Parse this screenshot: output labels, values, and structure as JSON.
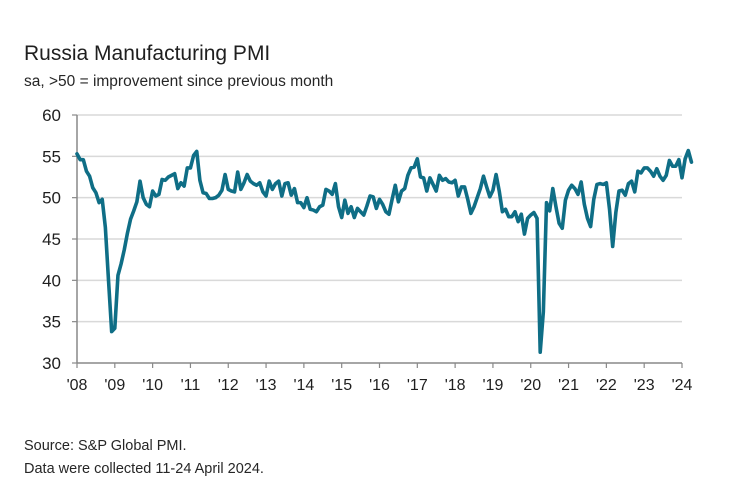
{
  "header": {
    "title": "Russia Manufacturing PMI",
    "subtitle": "sa, >50 = improvement since previous month"
  },
  "footer": {
    "source": "Source: S&P Global PMI.",
    "note": "Data were collected 11-24 April 2024."
  },
  "colors": {
    "line": "#0f6e86",
    "grid": "#d9d9d9",
    "axis": "#888888"
  },
  "chart_data": {
    "type": "line",
    "title": "Russia Manufacturing PMI",
    "subtitle": "sa, >50 = improvement since previous month",
    "xlabel": "",
    "ylabel": "",
    "ylim": [
      30,
      60
    ],
    "yticks": [
      30,
      35,
      40,
      45,
      50,
      55,
      60
    ],
    "ytick_labels": [
      "30",
      "35",
      "40",
      "45",
      "50",
      "55",
      "60"
    ],
    "xtick_labels": [
      "'08",
      "'09",
      "'10",
      "'11",
      "'12",
      "'13",
      "'14",
      "'15",
      "'16",
      "'17",
      "'18",
      "'19",
      "'20",
      "'21",
      "'22",
      "'23",
      "'24"
    ],
    "x_start": "2008-01",
    "x_end": "2024-04",
    "frequency": "monthly",
    "grid": true,
    "legend": "none",
    "series": [
      {
        "name": "Russia Manufacturing PMI",
        "values": [
          55.3,
          54.6,
          54.6,
          53.2,
          52.6,
          51.2,
          50.6,
          49.4,
          49.8,
          46.4,
          40.0,
          33.8,
          34.2,
          40.6,
          42.0,
          43.7,
          45.7,
          47.4,
          48.4,
          49.5,
          52.0,
          50.0,
          49.2,
          48.9,
          50.8,
          50.2,
          50.4,
          52.2,
          52.1,
          52.5,
          52.7,
          52.9,
          51.1,
          51.8,
          51.4,
          53.6,
          53.6,
          55.1,
          55.6,
          52.1,
          50.6,
          50.5,
          49.9,
          49.9,
          50.0,
          50.3,
          50.9,
          52.8,
          51.0,
          50.8,
          50.7,
          53.1,
          51.0,
          51.8,
          52.8,
          52.0,
          51.7,
          51.5,
          51.8,
          50.7,
          50.2,
          52.0,
          51.0,
          51.7,
          52.0,
          50.2,
          51.7,
          51.8,
          50.3,
          51.1,
          49.4,
          49.4,
          48.8,
          50.0,
          48.6,
          48.5,
          48.3,
          48.9,
          49.1,
          51.0,
          50.8,
          50.4,
          51.7,
          48.9,
          47.6,
          49.7,
          48.1,
          48.9,
          47.6,
          48.7,
          48.3,
          47.9,
          49.0,
          50.2,
          50.1,
          48.7,
          49.8,
          49.2,
          48.3,
          48.0,
          49.8,
          51.5,
          49.5,
          50.8,
          51.1,
          52.7,
          53.6,
          53.7,
          54.7,
          52.5,
          52.4,
          50.8,
          52.4,
          51.6,
          50.8,
          52.7,
          52.1,
          52.3,
          51.9,
          51.8,
          52.1,
          50.2,
          51.3,
          51.3,
          49.8,
          48.1,
          48.9,
          50.0,
          51.1,
          52.6,
          51.3,
          50.1,
          50.9,
          52.8,
          50.8,
          48.3,
          48.6,
          47.7,
          47.7,
          48.3,
          47.1,
          48.0,
          45.6,
          47.5,
          47.9,
          48.2,
          47.5,
          31.3,
          36.2,
          49.4,
          48.4,
          51.1,
          48.9,
          46.9,
          46.3,
          49.7,
          50.9,
          51.5,
          51.1,
          50.4,
          51.9,
          49.2,
          47.5,
          46.5,
          49.8,
          51.6,
          51.7,
          51.6,
          51.8,
          48.6,
          44.1,
          48.2,
          50.8,
          50.9,
          50.3,
          51.7,
          52.0,
          50.7,
          53.2,
          53.0,
          53.6,
          53.6,
          53.2,
          52.6,
          53.5,
          52.6,
          52.1,
          52.7,
          54.5,
          53.8,
          53.8,
          54.6,
          52.4,
          54.7,
          55.7,
          54.3
        ]
      }
    ]
  }
}
